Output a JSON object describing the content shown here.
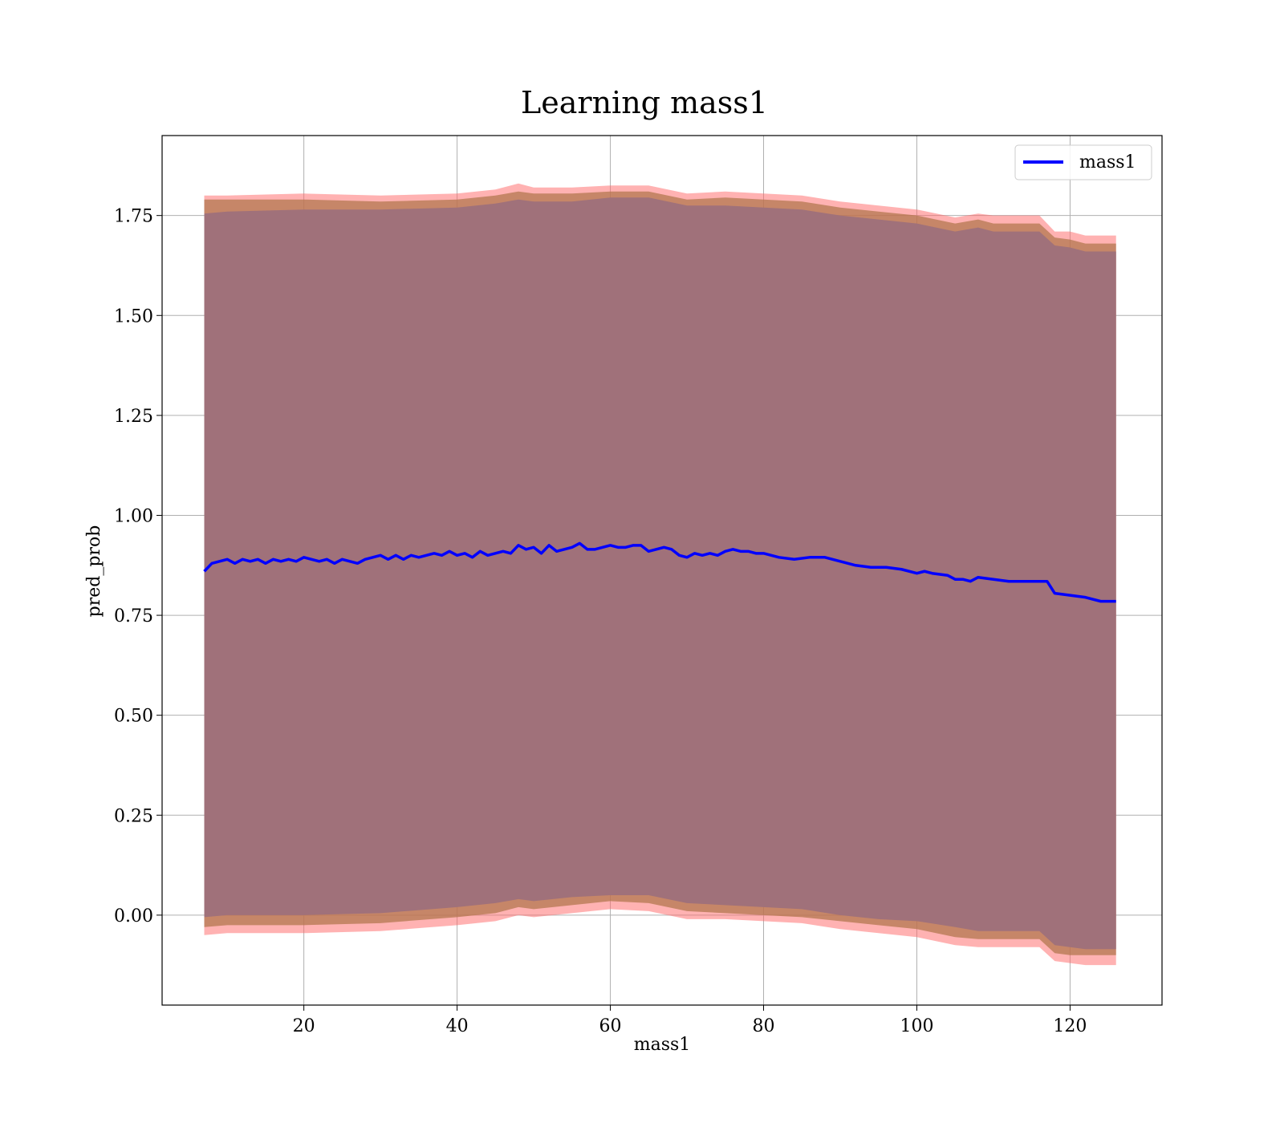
{
  "chart_data": {
    "type": "line",
    "title": "Learning mass1",
    "xlabel": "mass1",
    "ylabel": "pred_prob",
    "xlim": [
      1.5,
      132
    ],
    "ylim": [
      -0.225,
      1.95
    ],
    "grid": true,
    "legend_position": "top-right",
    "x_ticks": [
      20,
      40,
      60,
      80,
      100,
      120
    ],
    "x_tick_labels": [
      "20",
      "40",
      "60",
      "80",
      "100",
      "120"
    ],
    "y_ticks": [
      0.0,
      0.25,
      0.5,
      0.75,
      1.0,
      1.25,
      1.5,
      1.75
    ],
    "y_tick_labels": [
      "0.00",
      "0.25",
      "0.50",
      "0.75",
      "1.00",
      "1.25",
      "1.50",
      "1.75"
    ],
    "colors": {
      "line": "#0000ff",
      "band_outer": "#ff6666",
      "band_mid": "#b3774f",
      "band_inner": "#a0717a",
      "grid": "#b0b0b0"
    },
    "series": [
      {
        "name": "mass1",
        "x": [
          7,
          8,
          9,
          10,
          11,
          12,
          13,
          14,
          15,
          16,
          17,
          18,
          19,
          20,
          21,
          22,
          23,
          24,
          25,
          26,
          27,
          28,
          29,
          30,
          31,
          32,
          33,
          34,
          35,
          36,
          37,
          38,
          39,
          40,
          41,
          42,
          43,
          44,
          45,
          46,
          47,
          48,
          49,
          50,
          51,
          52,
          53,
          54,
          55,
          56,
          57,
          58,
          59,
          60,
          61,
          62,
          63,
          64,
          65,
          66,
          67,
          68,
          69,
          70,
          71,
          72,
          73,
          74,
          75,
          76,
          77,
          78,
          79,
          80,
          81,
          82,
          84,
          86,
          88,
          90,
          92,
          94,
          96,
          98,
          100,
          101,
          102,
          104,
          105,
          106,
          107,
          108,
          110,
          112,
          114,
          116,
          117,
          118,
          120,
          122,
          124,
          126
        ],
        "y": [
          0.86,
          0.88,
          0.885,
          0.89,
          0.88,
          0.89,
          0.885,
          0.89,
          0.88,
          0.89,
          0.885,
          0.89,
          0.885,
          0.895,
          0.89,
          0.885,
          0.89,
          0.88,
          0.89,
          0.885,
          0.88,
          0.89,
          0.895,
          0.9,
          0.89,
          0.9,
          0.89,
          0.9,
          0.895,
          0.9,
          0.905,
          0.9,
          0.91,
          0.9,
          0.905,
          0.895,
          0.91,
          0.9,
          0.905,
          0.91,
          0.905,
          0.925,
          0.915,
          0.92,
          0.905,
          0.925,
          0.91,
          0.915,
          0.92,
          0.93,
          0.915,
          0.915,
          0.92,
          0.925,
          0.92,
          0.92,
          0.925,
          0.925,
          0.91,
          0.915,
          0.92,
          0.915,
          0.9,
          0.895,
          0.905,
          0.9,
          0.905,
          0.9,
          0.91,
          0.915,
          0.91,
          0.91,
          0.905,
          0.905,
          0.9,
          0.895,
          0.89,
          0.895,
          0.895,
          0.885,
          0.875,
          0.87,
          0.87,
          0.865,
          0.855,
          0.86,
          0.855,
          0.85,
          0.84,
          0.84,
          0.835,
          0.845,
          0.84,
          0.835,
          0.835,
          0.835,
          0.835,
          0.805,
          0.8,
          0.795,
          0.785,
          0.785
        ]
      }
    ],
    "bands": [
      {
        "x": [
          7,
          10,
          20,
          30,
          40,
          45,
          48,
          50,
          55,
          60,
          65,
          70,
          75,
          80,
          85,
          90,
          95,
          100,
          105,
          108,
          110,
          116,
          118,
          120,
          122,
          124,
          126
        ],
        "upper": [
          1.8,
          1.8,
          1.805,
          1.8,
          1.805,
          1.815,
          1.83,
          1.82,
          1.82,
          1.825,
          1.825,
          1.805,
          1.81,
          1.805,
          1.8,
          1.785,
          1.775,
          1.765,
          1.745,
          1.755,
          1.75,
          1.75,
          1.71,
          1.71,
          1.7,
          1.7,
          1.7
        ],
        "lower": [
          -0.05,
          -0.045,
          -0.045,
          -0.04,
          -0.025,
          -0.015,
          0.0,
          -0.005,
          0.005,
          0.015,
          0.01,
          -0.01,
          -0.01,
          -0.015,
          -0.02,
          -0.035,
          -0.045,
          -0.055,
          -0.075,
          -0.08,
          -0.08,
          -0.08,
          -0.115,
          -0.12,
          -0.125,
          -0.125,
          -0.125
        ]
      },
      {
        "x": [
          7,
          10,
          20,
          30,
          40,
          45,
          48,
          50,
          55,
          60,
          65,
          70,
          75,
          80,
          85,
          90,
          95,
          100,
          105,
          108,
          110,
          116,
          118,
          120,
          122,
          124,
          126
        ],
        "upper": [
          1.79,
          1.79,
          1.79,
          1.785,
          1.79,
          1.8,
          1.81,
          1.805,
          1.805,
          1.81,
          1.81,
          1.79,
          1.795,
          1.79,
          1.785,
          1.77,
          1.76,
          1.75,
          1.73,
          1.74,
          1.73,
          1.73,
          1.695,
          1.69,
          1.68,
          1.68,
          1.68
        ],
        "lower": [
          -0.03,
          -0.025,
          -0.025,
          -0.02,
          -0.005,
          0.005,
          0.02,
          0.015,
          0.025,
          0.035,
          0.03,
          0.01,
          0.005,
          0.0,
          -0.005,
          -0.015,
          -0.025,
          -0.035,
          -0.055,
          -0.06,
          -0.06,
          -0.06,
          -0.095,
          -0.1,
          -0.1,
          -0.1,
          -0.1
        ]
      },
      {
        "x": [
          7,
          10,
          20,
          30,
          40,
          45,
          48,
          50,
          55,
          60,
          65,
          70,
          75,
          80,
          85,
          90,
          95,
          100,
          105,
          108,
          110,
          116,
          118,
          120,
          122,
          124,
          126
        ],
        "upper": [
          1.755,
          1.76,
          1.765,
          1.765,
          1.77,
          1.78,
          1.79,
          1.785,
          1.785,
          1.795,
          1.795,
          1.775,
          1.775,
          1.77,
          1.765,
          1.75,
          1.74,
          1.73,
          1.71,
          1.72,
          1.71,
          1.71,
          1.675,
          1.67,
          1.66,
          1.66,
          1.66
        ],
        "lower": [
          -0.005,
          0.0,
          0.0,
          0.005,
          0.02,
          0.03,
          0.04,
          0.035,
          0.045,
          0.05,
          0.05,
          0.03,
          0.025,
          0.02,
          0.015,
          0.0,
          -0.01,
          -0.015,
          -0.03,
          -0.04,
          -0.04,
          -0.04,
          -0.075,
          -0.08,
          -0.085,
          -0.085,
          -0.085
        ]
      }
    ]
  }
}
